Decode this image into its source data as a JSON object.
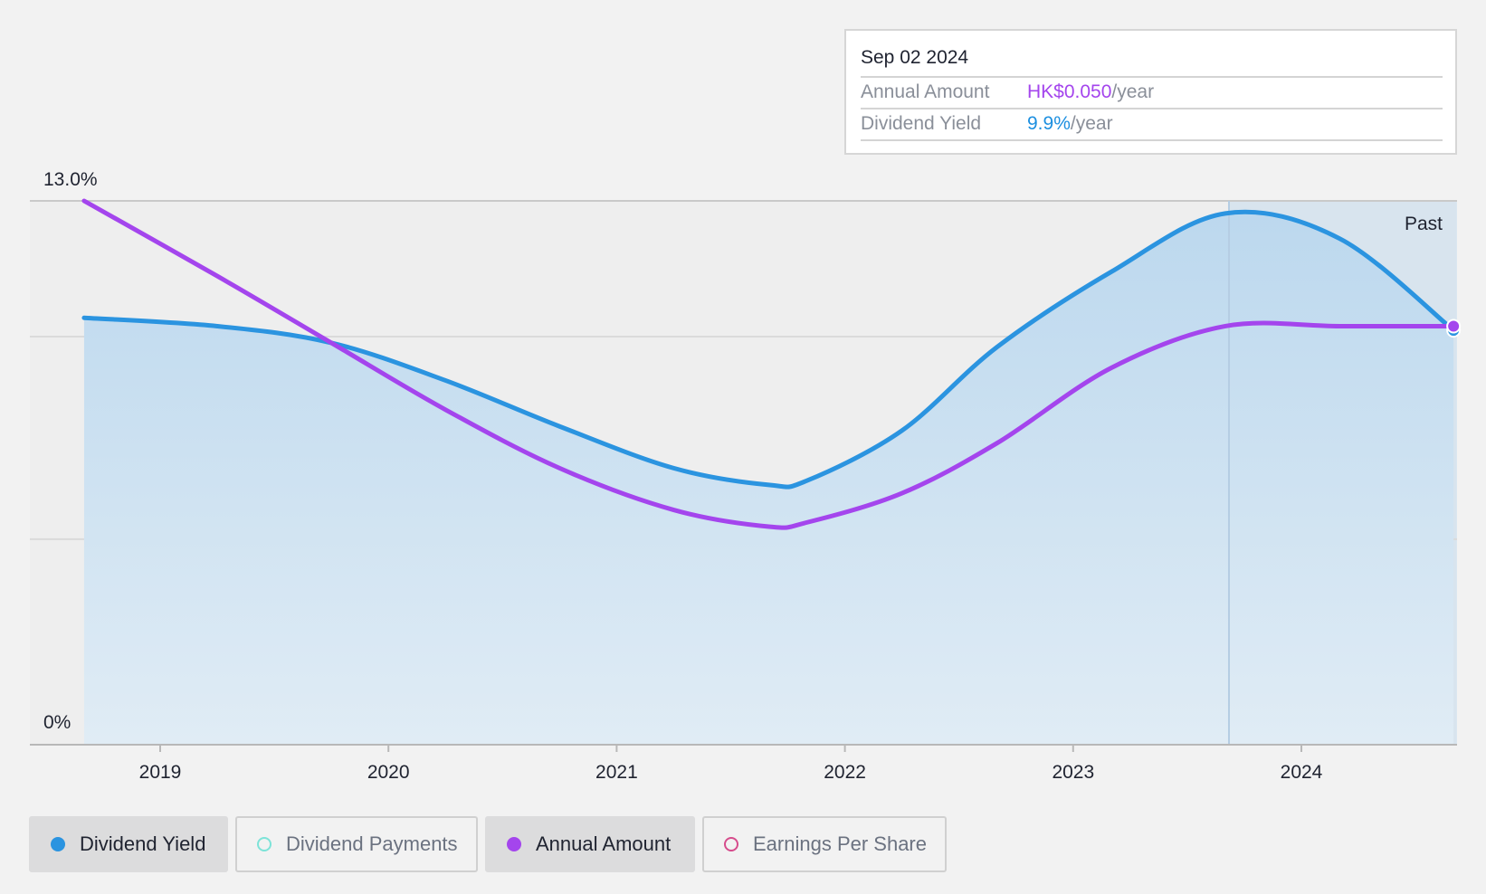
{
  "chart_data": {
    "type": "area",
    "y_ticks": [
      "13.0%",
      "0%"
    ],
    "ylim": [
      0,
      13.0
    ],
    "x_ticks": [
      "2019",
      "2020",
      "2021",
      "2022",
      "2023",
      "2024"
    ],
    "region_label": "Past",
    "grid": true,
    "series": [
      {
        "name": "Dividend Yield",
        "unit": "%",
        "color": "#2b94e0",
        "fill": true,
        "points": [
          [
            "2018-09",
            10.2
          ],
          [
            "2019-04",
            10.0
          ],
          [
            "2019-10",
            9.6
          ],
          [
            "2020-04",
            8.7
          ],
          [
            "2020-10",
            7.6
          ],
          [
            "2021-04",
            6.6
          ],
          [
            "2021-09",
            6.2
          ],
          [
            "2021-11",
            6.3
          ],
          [
            "2022-04",
            7.5
          ],
          [
            "2022-09",
            9.5
          ],
          [
            "2023-03",
            11.3
          ],
          [
            "2023-09",
            12.7
          ],
          [
            "2024-03",
            12.1
          ],
          [
            "2024-09",
            9.9
          ]
        ]
      },
      {
        "name": "Annual Amount",
        "unit": "HK$",
        "color": "#a445ed",
        "fill": false,
        "points": [
          [
            "2018-09",
            0.065
          ],
          [
            "2019-04",
            0.056
          ],
          [
            "2019-10",
            0.048
          ],
          [
            "2020-04",
            0.04
          ],
          [
            "2020-10",
            0.033
          ],
          [
            "2021-04",
            0.028
          ],
          [
            "2021-09",
            0.026
          ],
          [
            "2021-11",
            0.0265
          ],
          [
            "2022-04",
            0.03
          ],
          [
            "2022-09",
            0.036
          ],
          [
            "2023-03",
            0.045
          ],
          [
            "2023-09",
            0.05
          ],
          [
            "2024-03",
            0.05
          ],
          [
            "2024-09",
            0.05
          ]
        ]
      }
    ]
  },
  "tooltip": {
    "date": "Sep 02 2024",
    "rows": [
      {
        "label": "Annual Amount",
        "value": "HK$0.050",
        "suffix": "/year",
        "color": "#a445ed"
      },
      {
        "label": "Dividend Yield",
        "value": "9.9%",
        "suffix": "/year",
        "color": "#1c8fe0"
      }
    ]
  },
  "legend": [
    {
      "label": "Dividend Yield",
      "color": "#2b94e0",
      "active": true
    },
    {
      "label": "Dividend Payments",
      "color": "#7de3d8",
      "active": false
    },
    {
      "label": "Annual Amount",
      "color": "#a445ed",
      "active": true
    },
    {
      "label": "Earnings Per Share",
      "color": "#d64c8c",
      "active": false
    }
  ]
}
